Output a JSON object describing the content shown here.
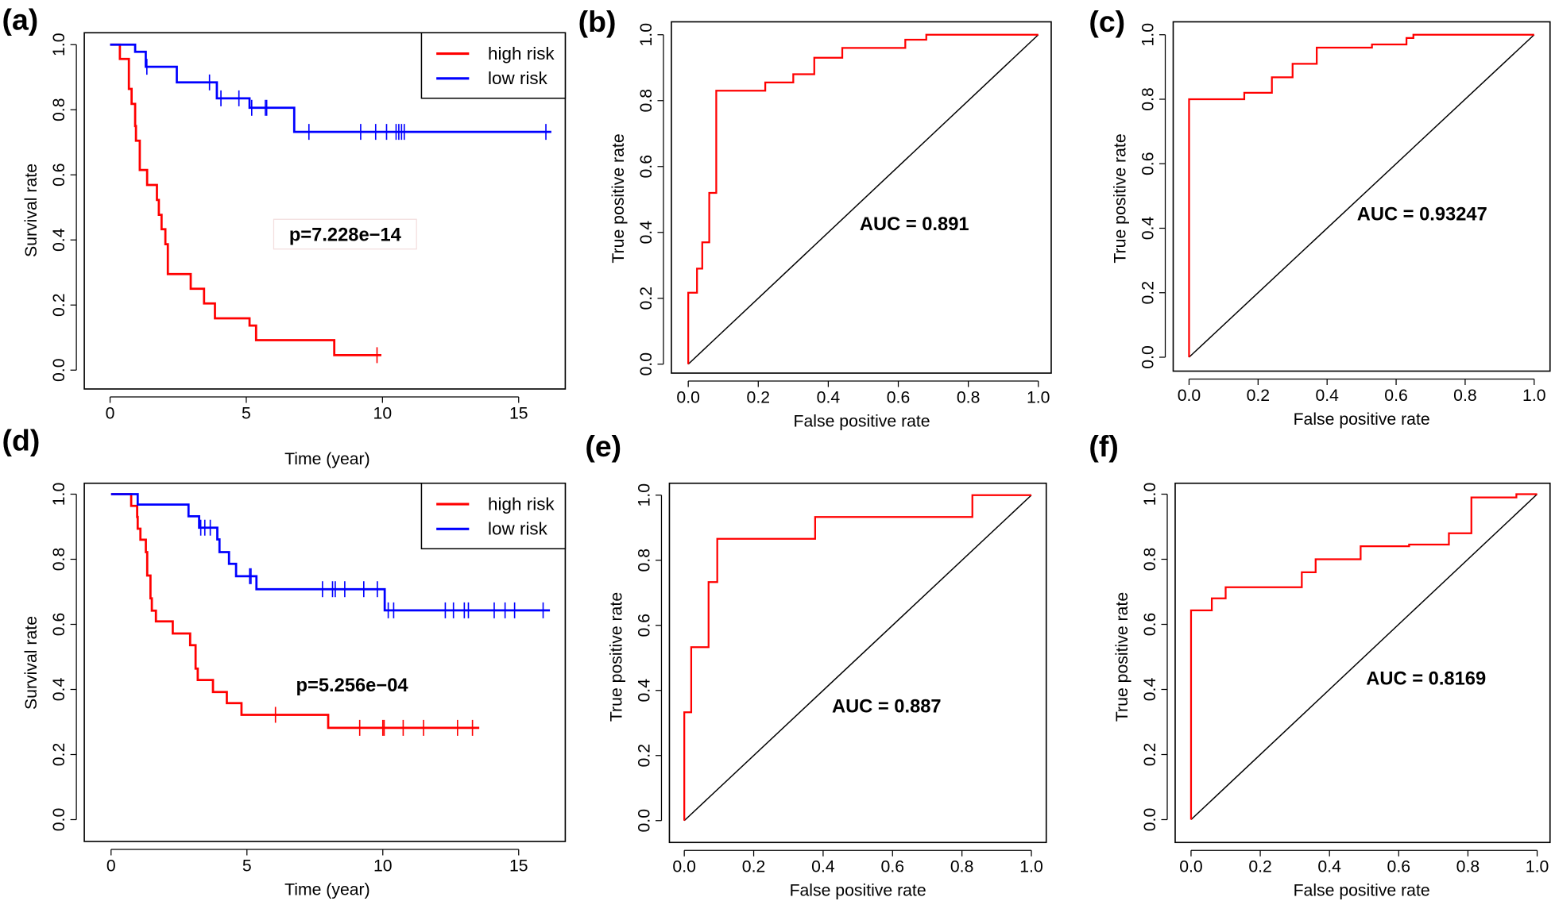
{
  "colors": {
    "high_risk": "#ff0000",
    "low_risk": "#0000ff",
    "roc": "#ff0000",
    "diagonal": "#000000"
  },
  "chart_data": [
    {
      "panel": "(a)",
      "type": "line",
      "subtype": "kaplan-meier",
      "xlabel": "Time (year)",
      "ylabel": "Survival rate",
      "xlim": [
        0,
        16.2
      ],
      "ylim": [
        0,
        1
      ],
      "xticks": [
        "0",
        "5",
        "10",
        "15"
      ],
      "yticks": [
        "0.0",
        "0.2",
        "0.4",
        "0.6",
        "0.8",
        "1.0"
      ],
      "legend": {
        "placement": "top-right",
        "entries": [
          "high risk",
          "low risk"
        ]
      },
      "annotation": "p=7.228e−14",
      "series": [
        {
          "name": "high risk",
          "steps": [
            [
              0.36,
              0.956
            ],
            [
              0.69,
              0.864
            ],
            [
              0.79,
              0.818
            ],
            [
              0.92,
              0.75
            ],
            [
              0.95,
              0.705
            ],
            [
              1.09,
              0.615
            ],
            [
              1.36,
              0.569
            ],
            [
              1.72,
              0.523
            ],
            [
              1.79,
              0.477
            ],
            [
              1.89,
              0.433
            ],
            [
              2.03,
              0.387
            ],
            [
              2.12,
              0.295
            ],
            [
              2.96,
              0.25
            ],
            [
              3.45,
              0.205
            ],
            [
              3.85,
              0.159
            ],
            [
              5.12,
              0.137
            ],
            [
              5.36,
              0.092
            ],
            [
              8.23,
              0.046
            ]
          ],
          "end": 9.96,
          "censored": [
            9.8
          ]
        },
        {
          "name": "low risk",
          "steps": [
            [
              0.92,
              0.978
            ],
            [
              1.31,
              0.932
            ],
            [
              2.45,
              0.884
            ],
            [
              3.92,
              0.835
            ],
            [
              5.12,
              0.806
            ],
            [
              6.76,
              0.732
            ]
          ],
          "end": 16.2,
          "censored": [
            1.35,
            3.65,
            4.07,
            4.73,
            5.2,
            5.7,
            5.75,
            7.3,
            9.2,
            9.75,
            10.15,
            10.5,
            10.6,
            10.7,
            10.8,
            16.0
          ]
        }
      ]
    },
    {
      "panel": "(b)",
      "type": "line",
      "subtype": "roc",
      "xlabel": "False positive rate",
      "ylabel": "True positive rate",
      "xlim": [
        0,
        1
      ],
      "ylim": [
        0,
        1
      ],
      "xticks": [
        "0.0",
        "0.2",
        "0.4",
        "0.6",
        "0.8",
        "1.0"
      ],
      "yticks": [
        "0.0",
        "0.2",
        "0.4",
        "0.6",
        "0.8",
        "1.0"
      ],
      "annotation": "AUC =  0.891",
      "points": [
        [
          0,
          0
        ],
        [
          0,
          0.217
        ],
        [
          0.025,
          0.217
        ],
        [
          0.025,
          0.29
        ],
        [
          0.04,
          0.29
        ],
        [
          0.04,
          0.37
        ],
        [
          0.06,
          0.37
        ],
        [
          0.06,
          0.52
        ],
        [
          0.08,
          0.52
        ],
        [
          0.08,
          0.83
        ],
        [
          0.22,
          0.83
        ],
        [
          0.22,
          0.855
        ],
        [
          0.3,
          0.855
        ],
        [
          0.3,
          0.88
        ],
        [
          0.36,
          0.88
        ],
        [
          0.36,
          0.93
        ],
        [
          0.44,
          0.93
        ],
        [
          0.44,
          0.96
        ],
        [
          0.62,
          0.96
        ],
        [
          0.62,
          0.985
        ],
        [
          0.68,
          0.985
        ],
        [
          0.68,
          1.0
        ],
        [
          1,
          1
        ]
      ]
    },
    {
      "panel": "(c)",
      "type": "line",
      "subtype": "roc",
      "xlabel": "False positive rate",
      "ylabel": "True positive rate",
      "xlim": [
        0,
        1
      ],
      "ylim": [
        0,
        1
      ],
      "xticks": [
        "0.0",
        "0.2",
        "0.4",
        "0.6",
        "0.8",
        "1.0"
      ],
      "yticks": [
        "0.0",
        "0.2",
        "0.4",
        "0.6",
        "0.8",
        "1.0"
      ],
      "annotation": "AUC =  0.93247",
      "points": [
        [
          0,
          0
        ],
        [
          0,
          0.8
        ],
        [
          0.16,
          0.8
        ],
        [
          0.16,
          0.82
        ],
        [
          0.24,
          0.82
        ],
        [
          0.24,
          0.868
        ],
        [
          0.3,
          0.868
        ],
        [
          0.3,
          0.91
        ],
        [
          0.37,
          0.91
        ],
        [
          0.37,
          0.96
        ],
        [
          0.53,
          0.96
        ],
        [
          0.53,
          0.97
        ],
        [
          0.63,
          0.97
        ],
        [
          0.63,
          0.99
        ],
        [
          0.65,
          0.99
        ],
        [
          0.65,
          1.0
        ],
        [
          1,
          1
        ]
      ]
    },
    {
      "panel": "(d)",
      "type": "line",
      "subtype": "kaplan-meier",
      "xlabel": "Time (year)",
      "ylabel": "Survival rate",
      "xlim": [
        0,
        16.2
      ],
      "ylim": [
        0,
        1
      ],
      "xticks": [
        "0",
        "5",
        "10",
        "15"
      ],
      "yticks": [
        "0.0",
        "0.2",
        "0.4",
        "0.6",
        "0.8",
        "1.0"
      ],
      "legend": {
        "placement": "top-right",
        "entries": [
          "high risk",
          "low risk"
        ]
      },
      "annotation": "p=5.256e−04",
      "series": [
        {
          "name": "high risk",
          "steps": [
            [
              0.74,
              0.964
            ],
            [
              0.96,
              0.93
            ],
            [
              0.98,
              0.894
            ],
            [
              1.08,
              0.86
            ],
            [
              1.28,
              0.822
            ],
            [
              1.33,
              0.75
            ],
            [
              1.45,
              0.68
            ],
            [
              1.5,
              0.642
            ],
            [
              1.65,
              0.609
            ],
            [
              2.27,
              0.572
            ],
            [
              2.91,
              0.536
            ],
            [
              3.11,
              0.464
            ],
            [
              3.19,
              0.429
            ],
            [
              3.75,
              0.392
            ],
            [
              4.26,
              0.358
            ],
            [
              4.8,
              0.322
            ],
            [
              7.99,
              0.282
            ]
          ],
          "end": 13.55,
          "censored": [
            6.05,
            9.15,
            10.0,
            10.05,
            10.75,
            11.5,
            12.75,
            13.3
          ]
        },
        {
          "name": "low risk",
          "steps": [
            [
              0.98,
              0.968
            ],
            [
              2.85,
              0.932
            ],
            [
              3.24,
              0.897
            ],
            [
              3.91,
              0.861
            ],
            [
              3.99,
              0.822
            ],
            [
              4.34,
              0.786
            ],
            [
              4.6,
              0.748
            ],
            [
              5.35,
              0.708
            ],
            [
              10.07,
              0.643
            ]
          ],
          "end": 16.15,
          "censored": [
            3.3,
            3.45,
            3.65,
            5.1,
            5.15,
            7.78,
            8.15,
            8.25,
            8.6,
            9.3,
            9.8,
            10.2,
            10.4,
            12.3,
            12.6,
            13.0,
            13.15,
            14.1,
            14.5,
            14.85,
            15.9
          ]
        }
      ]
    },
    {
      "panel": "(e)",
      "type": "line",
      "subtype": "roc",
      "xlabel": "False positive rate",
      "ylabel": "True positive rate",
      "xlim": [
        0,
        1
      ],
      "ylim": [
        0,
        1
      ],
      "xticks": [
        "0.0",
        "0.2",
        "0.4",
        "0.6",
        "0.8",
        "1.0"
      ],
      "yticks": [
        "0.0",
        "0.2",
        "0.4",
        "0.6",
        "0.8",
        "1.0"
      ],
      "annotation": "AUC =  0.887",
      "points": [
        [
          0,
          0
        ],
        [
          0,
          0.333
        ],
        [
          0.02,
          0.333
        ],
        [
          0.02,
          0.533
        ],
        [
          0.07,
          0.533
        ],
        [
          0.07,
          0.733
        ],
        [
          0.095,
          0.733
        ],
        [
          0.095,
          0.866
        ],
        [
          0.377,
          0.866
        ],
        [
          0.377,
          0.933
        ],
        [
          0.83,
          0.933
        ],
        [
          0.83,
          1.0
        ],
        [
          1,
          1
        ]
      ]
    },
    {
      "panel": "(f)",
      "type": "line",
      "subtype": "roc",
      "xlabel": "False positive rate",
      "ylabel": "True positive rate",
      "xlim": [
        0,
        1
      ],
      "ylim": [
        0,
        1
      ],
      "xticks": [
        "0.0",
        "0.2",
        "0.4",
        "0.6",
        "0.8",
        "1.0"
      ],
      "yticks": [
        "0.0",
        "0.2",
        "0.4",
        "0.6",
        "0.8",
        "1.0"
      ],
      "annotation": "AUC =  0.8169",
      "points": [
        [
          0,
          0
        ],
        [
          0,
          0.643
        ],
        [
          0.06,
          0.643
        ],
        [
          0.06,
          0.68
        ],
        [
          0.1,
          0.68
        ],
        [
          0.1,
          0.714
        ],
        [
          0.32,
          0.714
        ],
        [
          0.32,
          0.76
        ],
        [
          0.36,
          0.76
        ],
        [
          0.36,
          0.8
        ],
        [
          0.49,
          0.8
        ],
        [
          0.49,
          0.84
        ],
        [
          0.63,
          0.84
        ],
        [
          0.63,
          0.845
        ],
        [
          0.745,
          0.845
        ],
        [
          0.745,
          0.88
        ],
        [
          0.81,
          0.88
        ],
        [
          0.81,
          0.99
        ],
        [
          0.94,
          0.99
        ],
        [
          0.94,
          1.0
        ],
        [
          1,
          1
        ]
      ]
    }
  ]
}
